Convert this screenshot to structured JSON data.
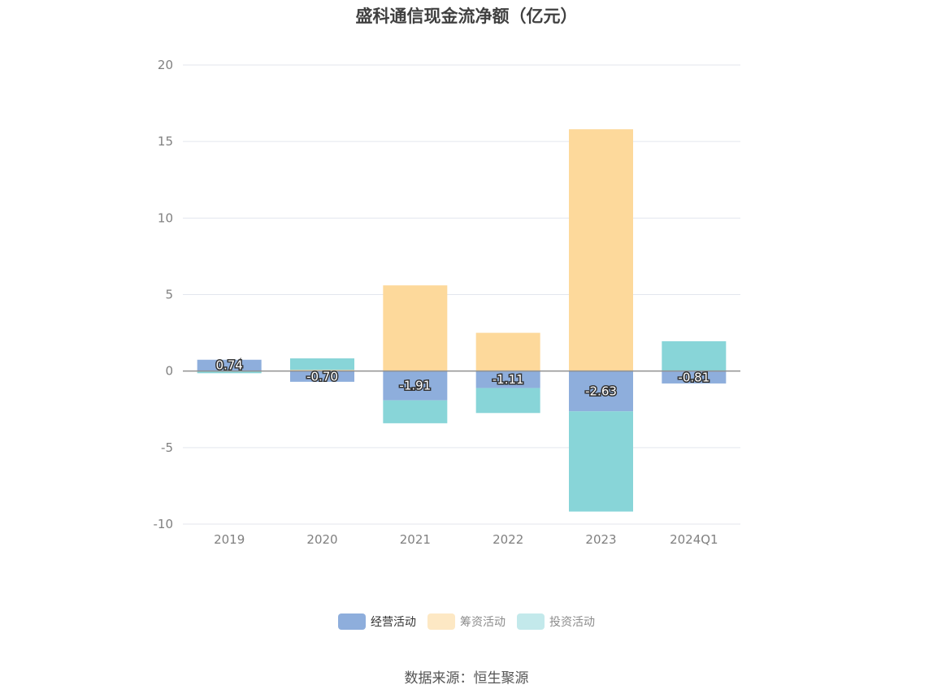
{
  "chart_data": {
    "type": "bar",
    "stacked": true,
    "title": "盛科通信现金流净额（亿元）",
    "categories": [
      "2019",
      "2020",
      "2021",
      "2022",
      "2023",
      "2024Q1"
    ],
    "series": [
      {
        "name": "经营活动",
        "color": "#8eaedc",
        "values": [
          0.74,
          -0.7,
          -1.91,
          -1.11,
          -2.63,
          -0.81
        ],
        "labeled": true
      },
      {
        "name": "筹资活动",
        "color": "#fdd99b",
        "values": [
          -0.02,
          0.08,
          5.6,
          2.5,
          15.8,
          0.0
        ]
      },
      {
        "name": "投资活动",
        "color": "#88d5d8",
        "values": [
          -0.12,
          0.75,
          -1.5,
          -1.63,
          -6.55,
          1.95
        ]
      }
    ],
    "ylim": [
      -10,
      20
    ],
    "yticks": [
      -10,
      -5,
      0,
      5,
      10,
      15,
      20
    ],
    "data_labels": [
      "0.74",
      "-0.70",
      "-1.91",
      "-1.11",
      "-2.63",
      "-0.81"
    ],
    "grid": true,
    "legend_position": "bottom"
  },
  "legend": [
    {
      "label": "经营活动",
      "color": "#8eaedc",
      "active": true
    },
    {
      "label": "筹资活动",
      "color": "#fde8c4",
      "active": false
    },
    {
      "label": "投资活动",
      "color": "#c3e9eb",
      "active": false
    }
  ],
  "source": "数据来源：恒生聚源"
}
